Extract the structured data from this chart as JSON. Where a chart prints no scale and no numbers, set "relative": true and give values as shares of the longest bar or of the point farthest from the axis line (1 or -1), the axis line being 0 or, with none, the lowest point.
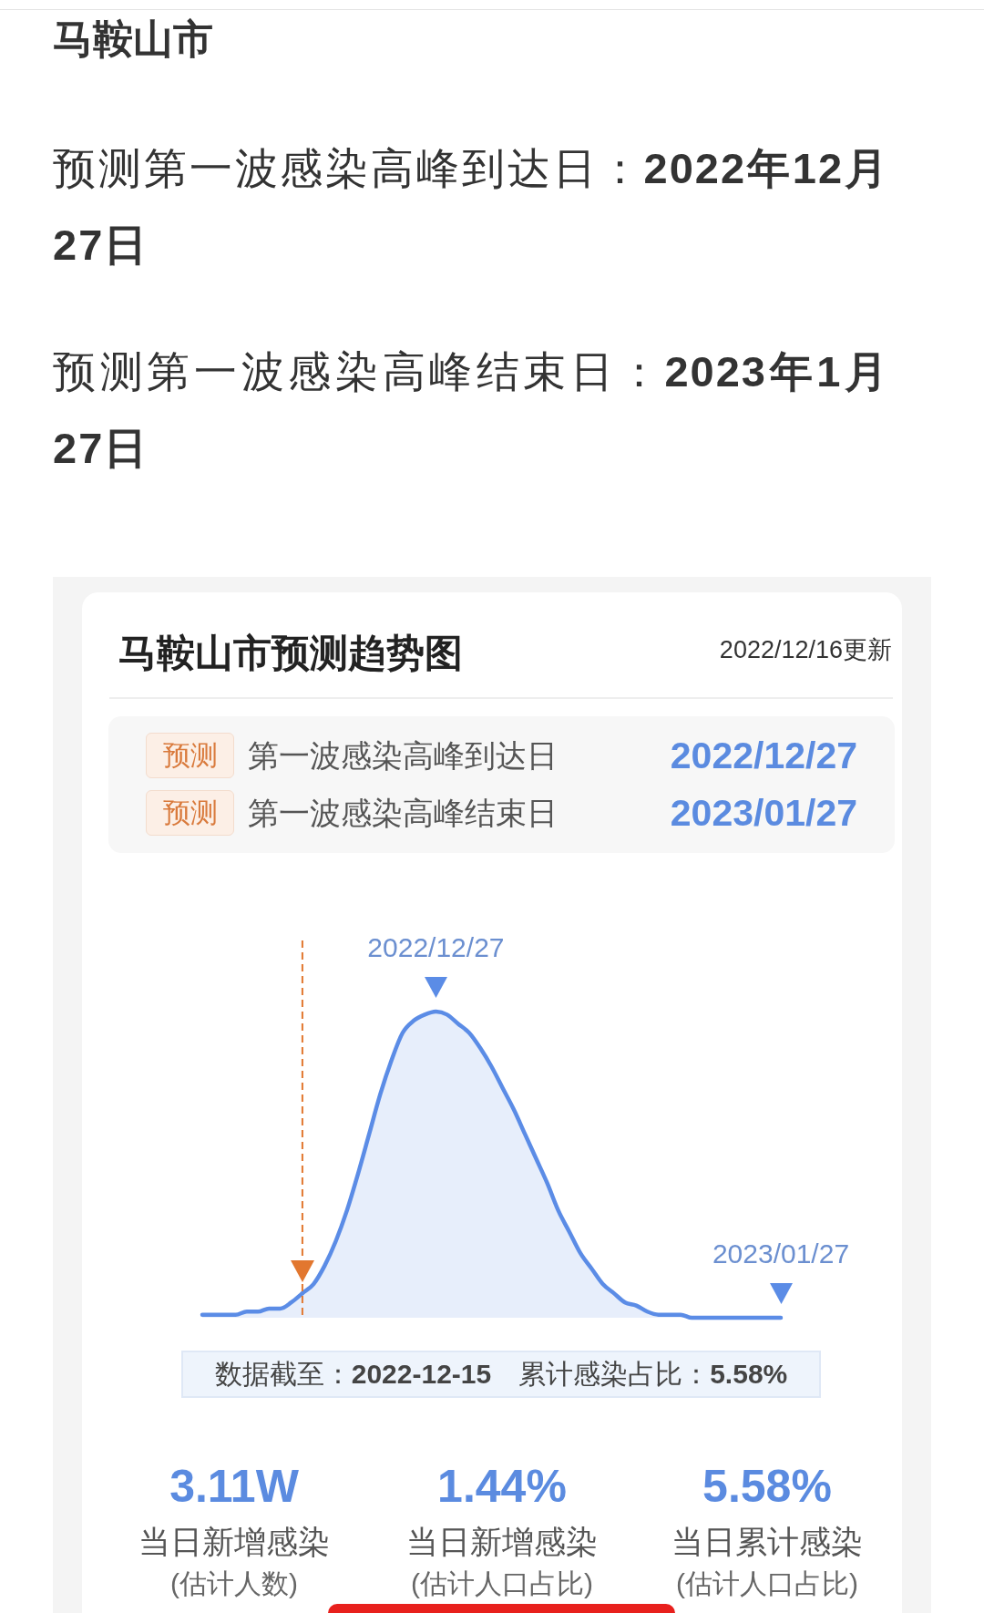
{
  "chart_data": {
    "type": "area",
    "title": "马鞍山市预测趋势图",
    "subtitle": "2022/12/16更新",
    "relative": true,
    "tick_labels": false,
    "categories": [
      null,
      null,
      null,
      null,
      null,
      null,
      null,
      null,
      null,
      null,
      null,
      null,
      null,
      null,
      null,
      null,
      null,
      null,
      null,
      null,
      null,
      null,
      null,
      null,
      null,
      null,
      null,
      null,
      null,
      null,
      null,
      null,
      null,
      null,
      null,
      null,
      null,
      null,
      null,
      null,
      null,
      null,
      null,
      null,
      null,
      null,
      null,
      null,
      null,
      null,
      null,
      null,
      null
    ],
    "series": [
      {
        "color": "#5b8ce6",
        "values": [
          0.01,
          0.01,
          0.01,
          0.01,
          0.02,
          0.02,
          0.03,
          0.03,
          0.05,
          0.08,
          null,
          null,
          null,
          null,
          null,
          null,
          null,
          null,
          null,
          null,
          null,
          null,
          null,
          null,
          null,
          null,
          null,
          null,
          null,
          null,
          null,
          null,
          null,
          null,
          null,
          null,
          null,
          null,
          null,
          null,
          null,
          null,
          null,
          null,
          null,
          null,
          null,
          null,
          null,
          null,
          null,
          null,
          null
        ]
      },
      {
        "color": "#5b8ce6",
        "values": [
          null,
          null,
          null,
          null,
          null,
          null,
          null,
          null,
          null,
          0.08,
          0.11,
          0.17,
          0.25,
          0.35,
          0.47,
          0.6,
          0.73,
          0.84,
          0.93,
          0.97,
          0.99,
          1,
          0.99,
          0.96,
          0.93,
          0.88,
          0.82,
          0.75,
          0.68,
          0.6,
          0.52,
          0.44,
          0.35,
          0.28,
          0.21,
          0.16,
          0.11,
          0.08,
          0.05,
          0.04,
          0.02,
          0.01,
          0.01,
          0.01,
          0,
          0,
          0,
          0,
          0,
          0,
          0,
          0,
          0
        ]
      }
    ],
    "annotations": [
      "马鞍山市",
      "预测第一波感染高峰到达日：",
      "2022年12月27日",
      "预测第一波感染高峰结束日：",
      "2023年1月27日",
      "预测",
      "第一波感染高峰到达日",
      "2022/12/27",
      "预测",
      "第一波感染高峰结束日",
      "2023/01/27",
      "2022/12/27",
      "2023/01/27",
      "数据截至：",
      "2022-12-15",
      "累计感染占比：",
      "5.58%",
      "3.11W",
      "当日新增感染",
      "(估计人数)",
      "1.44%",
      "当日新增感染",
      "(估计人口占比)",
      "5.58%",
      "当日累计感染",
      "(估计人口占比)"
    ]
  }
}
